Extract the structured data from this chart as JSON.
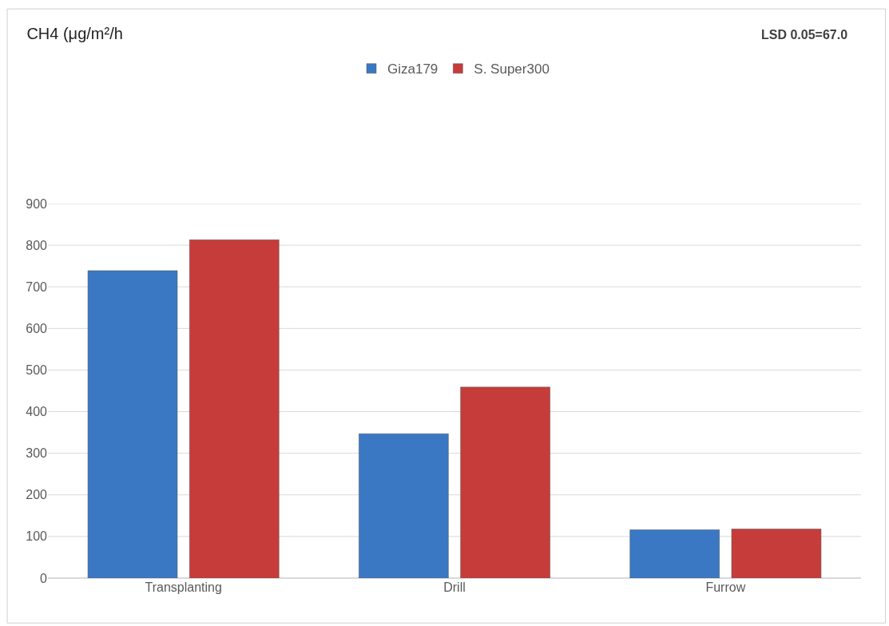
{
  "chart_data": {
    "type": "bar",
    "title": "CH4 (μg/m²/h",
    "annotations": [
      "LSD 0.05=67.0"
    ],
    "categories": [
      "Transplanting",
      "Drill",
      "Furrow"
    ],
    "series": [
      {
        "name": "Giza179",
        "color": "#3a78c4",
        "values": [
          739,
          347,
          116
        ]
      },
      {
        "name": "S. Super300",
        "color": "#c63c3a",
        "values": [
          813,
          459,
          118
        ]
      }
    ],
    "ylim": [
      0,
      900
    ],
    "yticks": [
      0,
      100,
      200,
      300,
      400,
      500,
      600,
      700,
      800,
      900
    ],
    "grid": "y",
    "legend": "top"
  }
}
